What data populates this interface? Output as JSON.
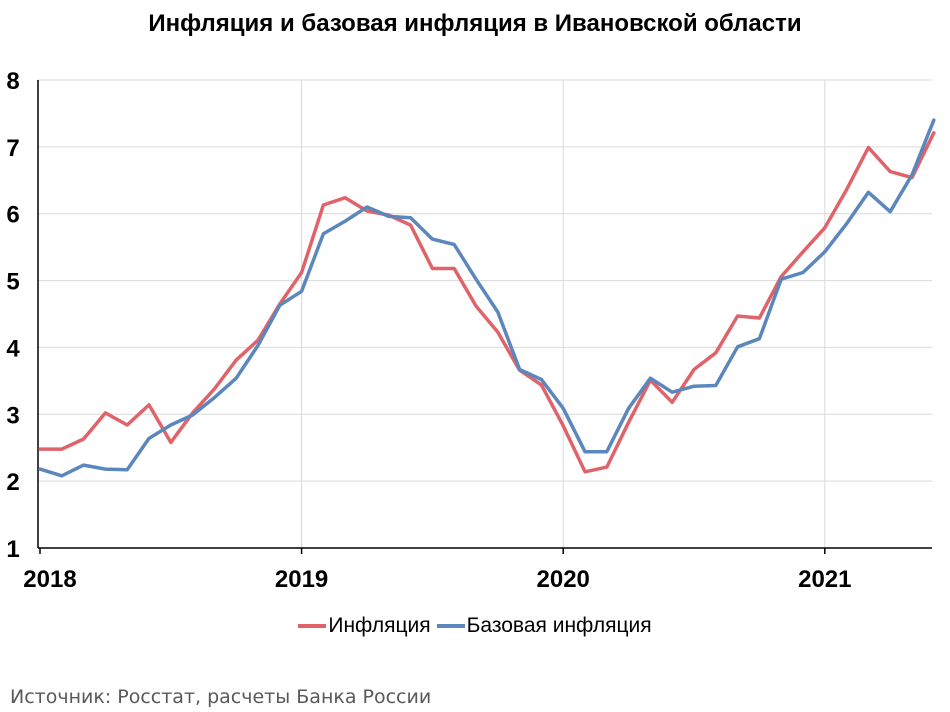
{
  "chart_data": {
    "type": "line",
    "title": "Инфляция и базовая инфляция в Ивановской области",
    "xlabel": "",
    "ylabel": "",
    "ylim": [
      1,
      8
    ],
    "yticks": [
      1,
      2,
      3,
      4,
      5,
      6,
      7,
      8
    ],
    "xticks": [
      "2018",
      "2019",
      "2020",
      "2021"
    ],
    "x_start": "2018-01",
    "x_end": "2021-05",
    "grid": true,
    "legend_position": "bottom",
    "series": [
      {
        "name": "Инфляция",
        "color": "#e0636a",
        "values": [
          2.48,
          2.48,
          2.63,
          3.02,
          2.84,
          3.14,
          2.58,
          3.02,
          3.38,
          3.81,
          4.11,
          4.65,
          5.12,
          6.13,
          6.24,
          6.04,
          5.98,
          5.83,
          5.18,
          5.18,
          4.62,
          4.23,
          3.66,
          3.44,
          2.83,
          2.14,
          2.21,
          2.88,
          3.51,
          3.18,
          3.67,
          3.92,
          4.47,
          4.44,
          5.06,
          5.43,
          5.79,
          6.36,
          6.99,
          6.63,
          6.54,
          7.21
        ]
      },
      {
        "name": "Базовая инфляция",
        "color": "#5b87bd",
        "values": [
          2.18,
          2.08,
          2.24,
          2.18,
          2.17,
          2.64,
          2.84,
          2.99,
          3.25,
          3.54,
          4.03,
          4.63,
          4.84,
          5.7,
          5.89,
          6.1,
          5.96,
          5.94,
          5.62,
          5.54,
          5.02,
          4.53,
          3.67,
          3.52,
          3.09,
          2.44,
          2.44,
          3.09,
          3.54,
          3.33,
          3.42,
          3.43,
          4.01,
          4.13,
          5.02,
          5.12,
          5.43,
          5.85,
          6.32,
          6.03,
          6.58,
          7.4
        ]
      }
    ]
  },
  "footer": {
    "source": "Источник: Росстат, расчеты Банка России"
  }
}
